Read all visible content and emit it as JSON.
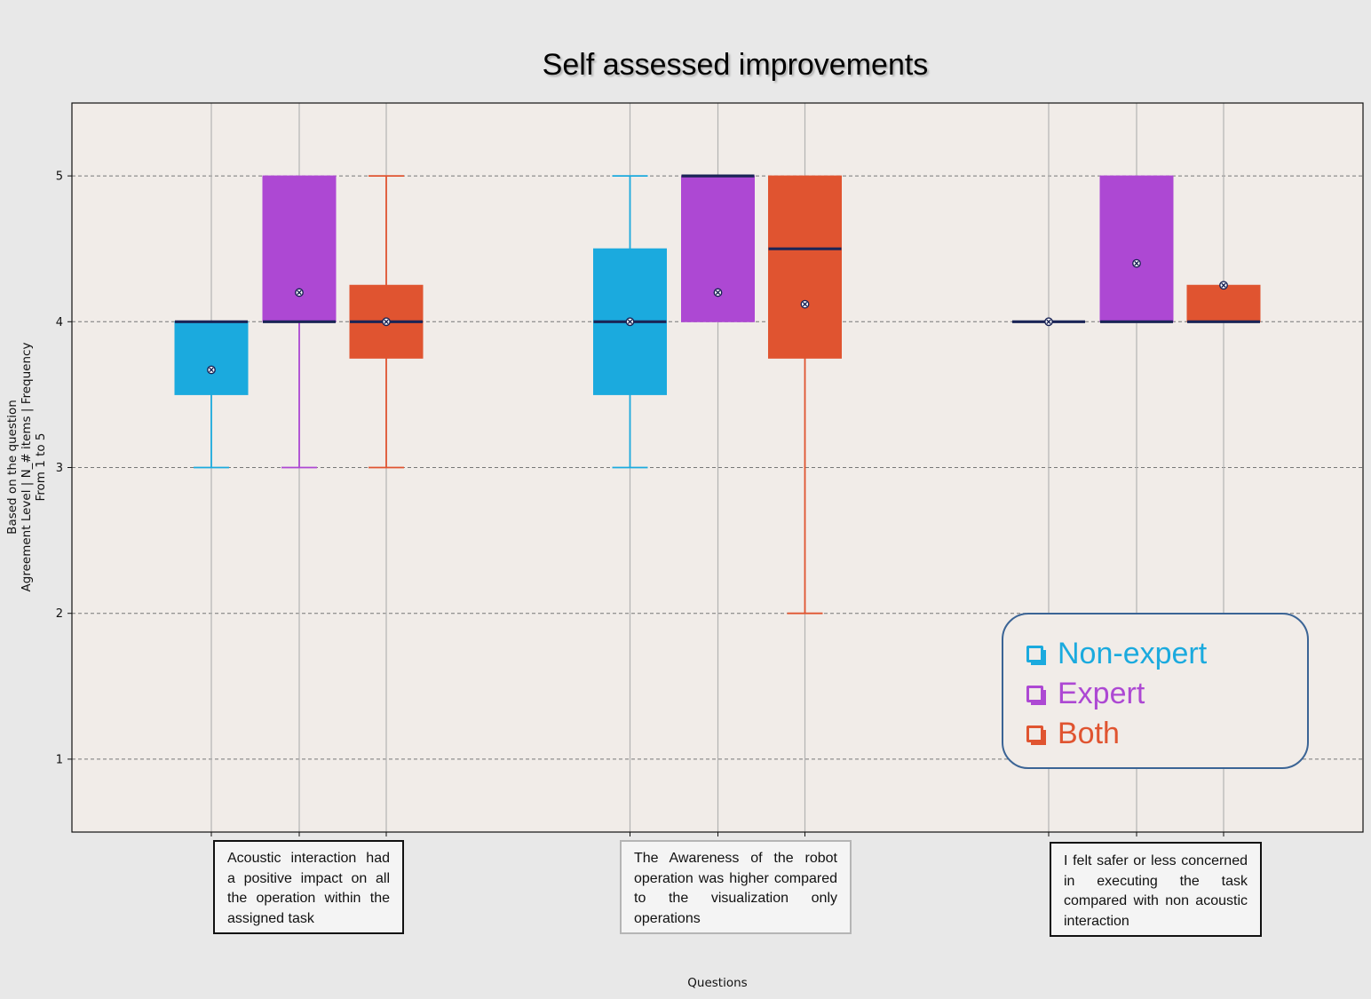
{
  "chart_data": {
    "type": "box",
    "title": "Self assessed improvements",
    "xlabel": "Questions",
    "ylabel": [
      "Based on the question",
      "Agreement Level | N_# items | Frequency",
      "From 1 to 5"
    ],
    "ylim": [
      0.5,
      5.5
    ],
    "yticks": [
      1,
      2,
      3,
      4,
      5
    ],
    "grid": true,
    "legend_position": "bottom-right",
    "categories": [
      "Acoustic interaction had a positive impact on all the operation within the assigned task",
      "The Awareness of the robot operation was higher compared to the visualization only operations",
      "I felt safer or less concerned in executing the task compared with non acoustic interaction"
    ],
    "series": [
      {
        "name": "Non-expert",
        "color": "#1baade",
        "boxes": [
          {
            "min": 3,
            "q1": 3.5,
            "median": 4,
            "q3": 4,
            "max": 4,
            "mean": 3.67
          },
          {
            "min": 3,
            "q1": 3.5,
            "median": 4,
            "q3": 4.5,
            "max": 5,
            "mean": 4.0
          },
          {
            "min": 4,
            "q1": 4,
            "median": 4,
            "q3": 4,
            "max": 4,
            "mean": 4.0
          }
        ]
      },
      {
        "name": "Expert",
        "color": "#ad48d3",
        "boxes": [
          {
            "min": 3,
            "q1": 4,
            "median": 4,
            "q3": 5,
            "max": 5,
            "mean": 4.2
          },
          {
            "min": 4,
            "q1": 4,
            "median": 5,
            "q3": 5,
            "max": 5,
            "mean": 4.2
          },
          {
            "min": 4,
            "q1": 4,
            "median": 4,
            "q3": 5,
            "max": 5,
            "mean": 4.4
          }
        ]
      },
      {
        "name": "Both",
        "color": "#e05430",
        "boxes": [
          {
            "min": 3,
            "q1": 3.75,
            "median": 4,
            "q3": 4.25,
            "max": 5,
            "mean": 4.0
          },
          {
            "min": 2,
            "q1": 3.75,
            "median": 4.5,
            "q3": 5,
            "max": 5,
            "mean": 4.12
          },
          {
            "min": 4,
            "q1": 4,
            "median": 4,
            "q3": 4.25,
            "max": 4.25,
            "mean": 4.25
          }
        ]
      }
    ]
  },
  "question_boxes": [
    "Acoustic interaction had a positive impact on all the operation within the assigned task",
    "The Awareness of the robot operation was higher compared to the visualization only operations",
    "I felt safer or less concerned in executing the task compared with non acoustic interaction"
  ],
  "legend": [
    "Non-expert",
    "Expert",
    "Both"
  ],
  "colors": {
    "plot_background": "#f1ece8",
    "page_background": "#e8e8e8",
    "median_line": "#1a2456",
    "legend_border": "#3b6495"
  }
}
